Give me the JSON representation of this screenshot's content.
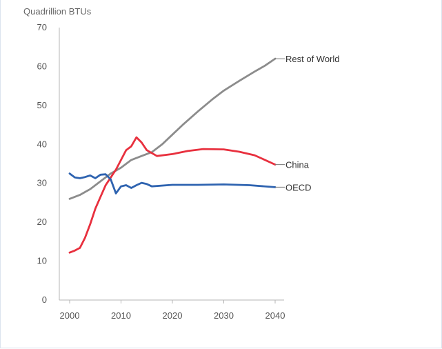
{
  "chart_data": {
    "type": "line",
    "ylabel": "Quadrillion BTUs",
    "ylim": [
      0,
      70
    ],
    "xlim": [
      2000,
      2040
    ],
    "yticks": [
      0,
      10,
      20,
      30,
      40,
      50,
      60,
      70
    ],
    "xticks": [
      2000,
      2010,
      2020,
      2030,
      2040
    ],
    "grid": false,
    "legend": "inline labels at line ends (right)",
    "series": [
      {
        "name": "Rest of World",
        "color": "#8c8c8c",
        "points": [
          [
            2000,
            26
          ],
          [
            2002,
            27
          ],
          [
            2004,
            28.5
          ],
          [
            2006,
            30.5
          ],
          [
            2008,
            32.5
          ],
          [
            2010,
            34
          ],
          [
            2012,
            36
          ],
          [
            2014,
            37
          ],
          [
            2016,
            38
          ],
          [
            2018,
            40
          ],
          [
            2020,
            42.5
          ],
          [
            2022,
            45
          ],
          [
            2025,
            48.5
          ],
          [
            2028,
            51.8
          ],
          [
            2030,
            53.8
          ],
          [
            2033,
            56.3
          ],
          [
            2036,
            58.7
          ],
          [
            2038,
            60.2
          ],
          [
            2040,
            62
          ]
        ]
      },
      {
        "name": "China",
        "color": "#e8303e",
        "points": [
          [
            2000,
            12.2
          ],
          [
            2001,
            12.7
          ],
          [
            2002,
            13.4
          ],
          [
            2003,
            16
          ],
          [
            2004,
            19.5
          ],
          [
            2005,
            23.5
          ],
          [
            2006,
            26.5
          ],
          [
            2007,
            29.5
          ],
          [
            2008,
            31.5
          ],
          [
            2009,
            33.5
          ],
          [
            2010,
            36
          ],
          [
            2011,
            38.5
          ],
          [
            2012,
            39.5
          ],
          [
            2013,
            41.8
          ],
          [
            2014,
            40.5
          ],
          [
            2015,
            38.5
          ],
          [
            2017,
            37
          ],
          [
            2020,
            37.5
          ],
          [
            2023,
            38.3
          ],
          [
            2026,
            38.8
          ],
          [
            2030,
            38.7
          ],
          [
            2033,
            38.1
          ],
          [
            2036,
            37.2
          ],
          [
            2040,
            34.8
          ]
        ]
      },
      {
        "name": "OECD",
        "color": "#2e63b0",
        "points": [
          [
            2000,
            32.5
          ],
          [
            2001,
            31.5
          ],
          [
            2002,
            31.3
          ],
          [
            2003,
            31.6
          ],
          [
            2004,
            32
          ],
          [
            2005,
            31.3
          ],
          [
            2006,
            32.2
          ],
          [
            2007,
            32.3
          ],
          [
            2008,
            31
          ],
          [
            2009,
            27.4
          ],
          [
            2010,
            29.2
          ],
          [
            2011,
            29.5
          ],
          [
            2012,
            28.8
          ],
          [
            2013,
            29.5
          ],
          [
            2014,
            30.1
          ],
          [
            2015,
            29.8
          ],
          [
            2016,
            29.2
          ],
          [
            2020,
            29.6
          ],
          [
            2025,
            29.6
          ],
          [
            2030,
            29.7
          ],
          [
            2035,
            29.5
          ],
          [
            2040,
            29
          ]
        ]
      }
    ]
  }
}
